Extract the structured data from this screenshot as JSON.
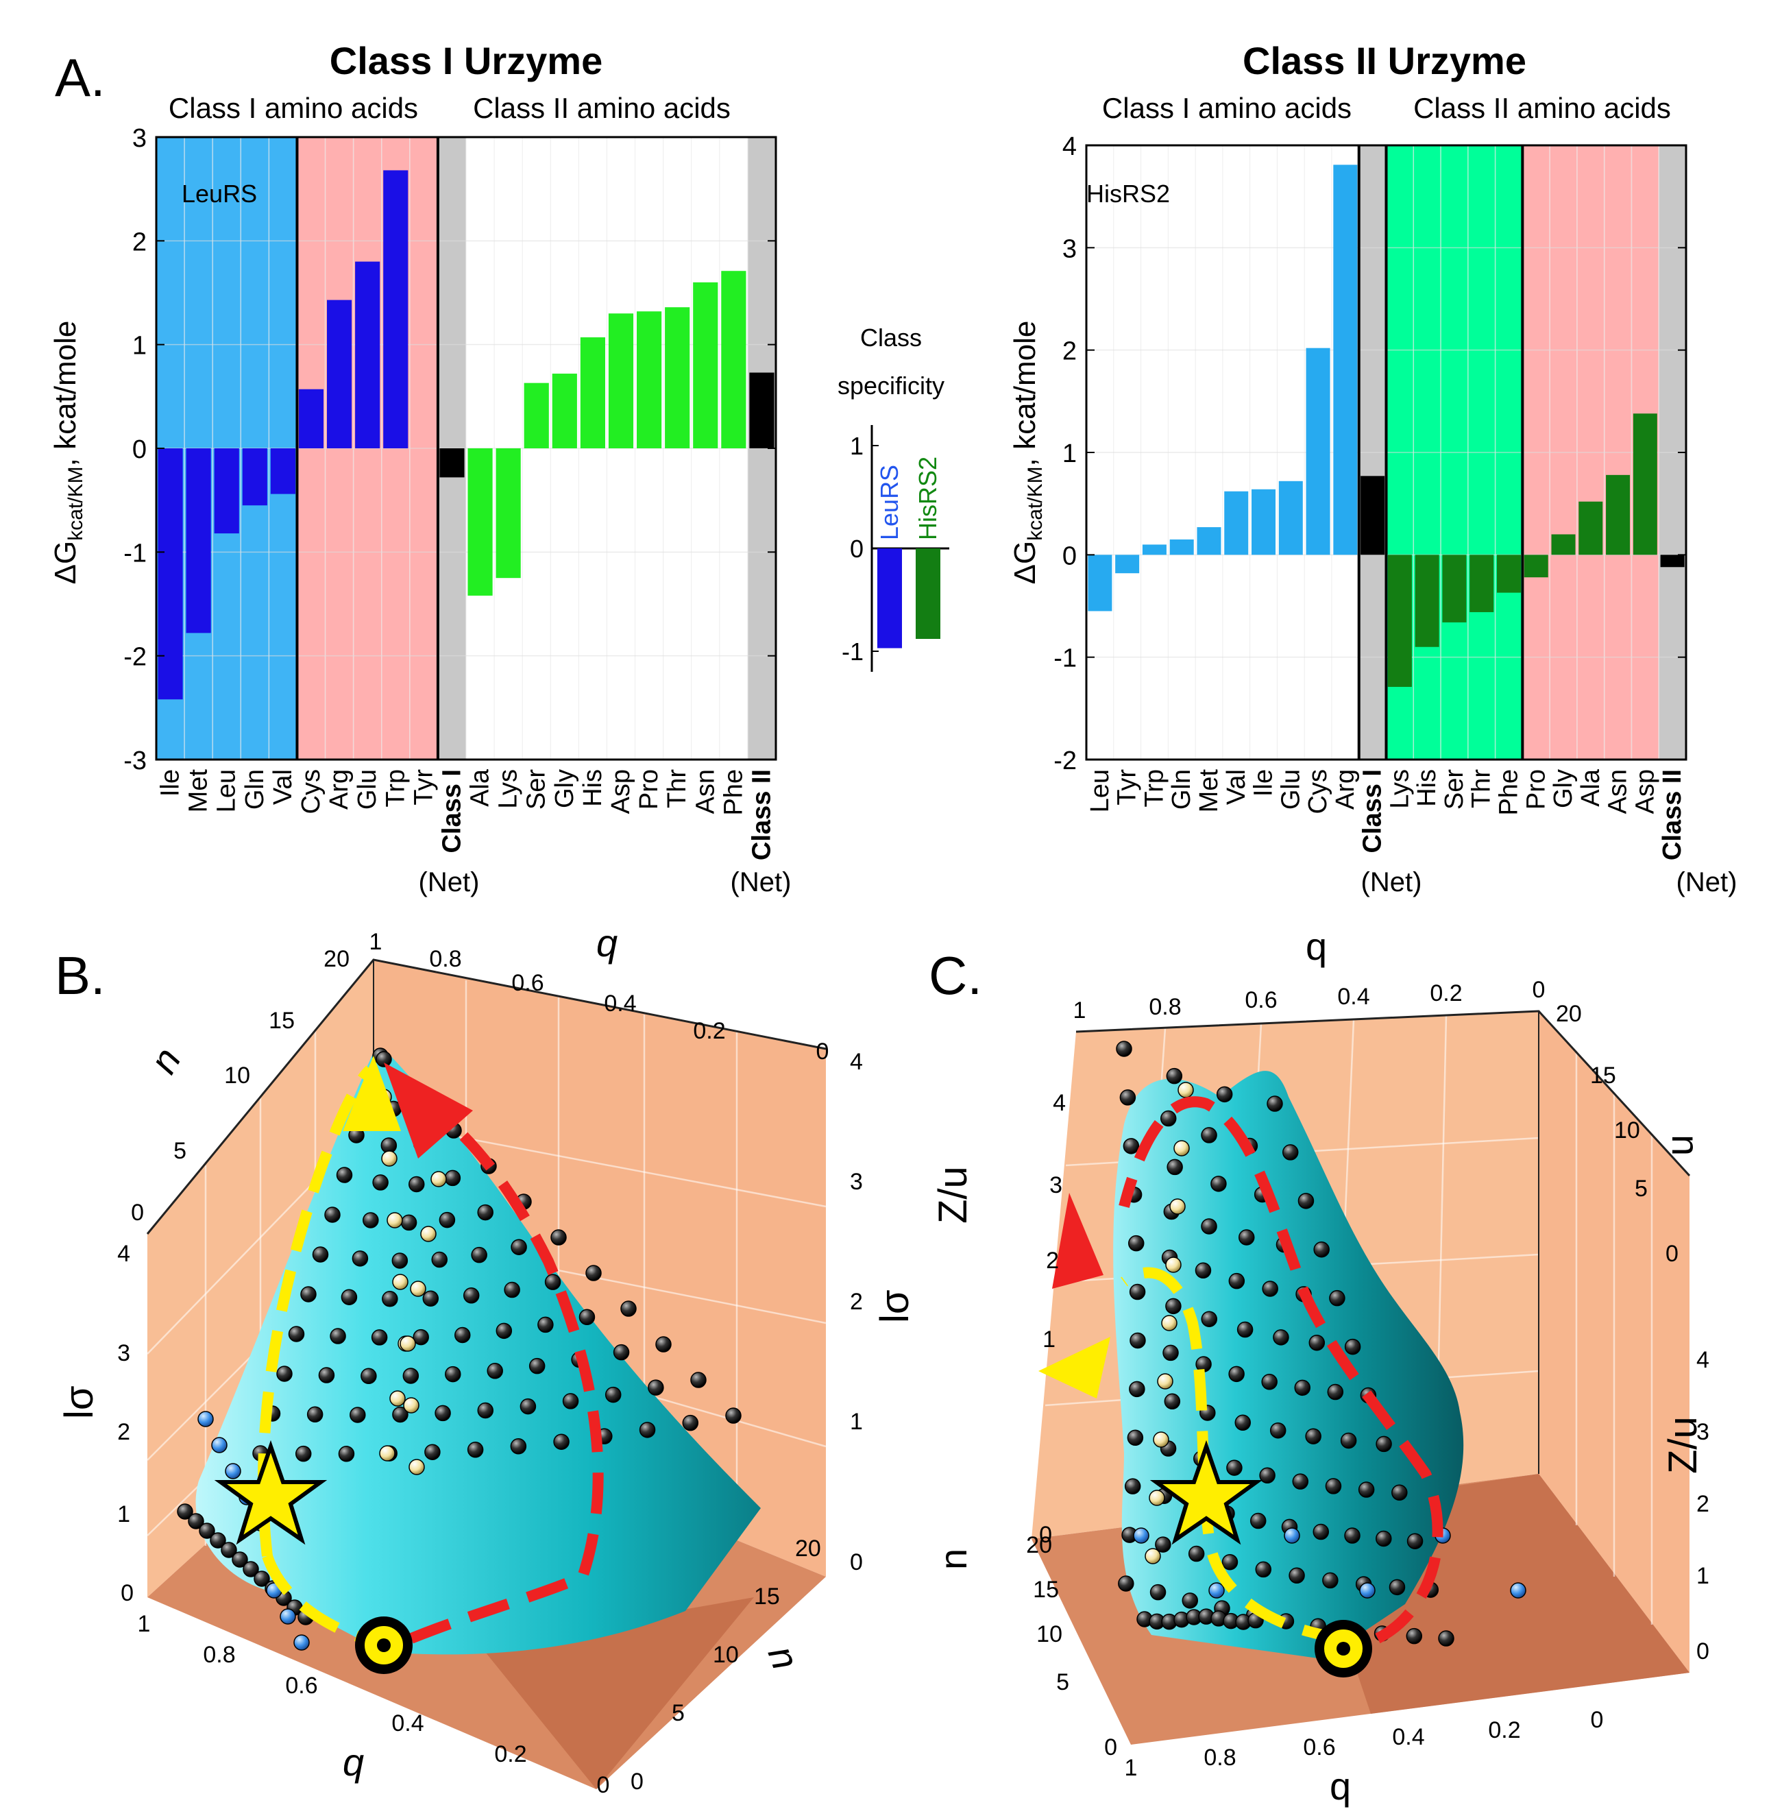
{
  "panel_labels": {
    "a": "A.",
    "b": "B.",
    "c": "C."
  },
  "ylabel_main": "ΔG",
  "ylabel_sub": "kcat/KM",
  "ylabel_unit": ", kcat/mole",
  "colors": {
    "class1_bg": "#3fb4f5",
    "class2_bg_pink": "#ffb0b0",
    "class2_bg_green": "#00ff99",
    "gray": "#c8c8c8",
    "dark_blue": "#1a0fe6",
    "bright_green": "#22ee22",
    "light_blue": "#27aaf0",
    "dark_green": "#137e13",
    "net": "#000000",
    "surface": "#18c7cc",
    "box_face": "#f8be95",
    "box_floor": "#cc7a55"
  },
  "chart_data": [
    {
      "id": "class1-urzyme",
      "type": "bar",
      "title": "Class I Urzyme",
      "group_labels": [
        "Class I amino acids",
        "Class II amino acids"
      ],
      "inset_label": "LeuRS",
      "ylim": [
        -3,
        3
      ],
      "yticks": [
        "-3",
        "-2",
        "-1",
        "0",
        "1",
        "2",
        "3"
      ],
      "categories": [
        "Ile",
        "Met",
        "Leu",
        "Gln",
        "Val",
        "Cys",
        "Arg",
        "Glu",
        "Trp",
        "Tyr",
        "Class I",
        "Ala",
        "Lys",
        "Ser",
        "Gly",
        "His",
        "Asp",
        "Pro",
        "Thr",
        "Asn",
        "Phe",
        "Class II"
      ],
      "values": [
        -2.42,
        -1.78,
        -0.82,
        -0.55,
        -0.44,
        0.57,
        1.43,
        1.8,
        2.68,
        0,
        -0.28,
        -1.42,
        -1.25,
        0.63,
        0.72,
        1.07,
        1.3,
        1.32,
        1.36,
        1.6,
        1.71,
        0.73
      ],
      "net_label": "(Net)"
    },
    {
      "id": "class-specificity",
      "type": "bar",
      "title": "Class specificity",
      "title_lines": [
        "Class",
        "specificity"
      ],
      "ylim": [
        -1.2,
        1.2
      ],
      "yticks": [
        "-1",
        "0",
        "1"
      ],
      "categories": [
        "LeuRS",
        "HisRS2"
      ],
      "values": [
        -0.97,
        -0.88
      ]
    },
    {
      "id": "class2-urzyme",
      "type": "bar",
      "title": "Class II Urzyme",
      "group_labels": [
        "Class I amino acids",
        "Class II amino acids"
      ],
      "inset_label": "HisRS2",
      "ylim": [
        -2,
        4
      ],
      "yticks": [
        "-2",
        "-1",
        "0",
        "1",
        "2",
        "3",
        "4"
      ],
      "categories": [
        "Leu",
        "Tyr",
        "Trp",
        "Gln",
        "Met",
        "Val",
        "Ile",
        "Glu",
        "Cys",
        "Arg",
        "Class I",
        "Lys",
        "His",
        "Ser",
        "Thr",
        "Phe",
        "Pro",
        "Gly",
        "Ala",
        "Asn",
        "Asp",
        "Class II"
      ],
      "values": [
        -0.55,
        -0.18,
        0.1,
        0.15,
        0.27,
        0.62,
        0.64,
        0.72,
        2.02,
        3.81,
        0.77,
        -1.29,
        -0.9,
        -0.66,
        -0.56,
        -0.37,
        -0.22,
        0.2,
        0.52,
        0.78,
        1.38,
        -0.12
      ],
      "net_label": "(Net)"
    },
    {
      "id": "surface-B",
      "type": "surface3d",
      "axes": {
        "q": "q",
        "n": "n",
        "z": "lσ"
      },
      "q_ticks": [
        "1",
        "0.8",
        "0.6",
        "0.4",
        "0.2",
        "0"
      ],
      "n_ticks": [
        "0",
        "5",
        "10",
        "15",
        "20"
      ],
      "z_ticks": [
        "0",
        "1",
        "2",
        "3",
        "4"
      ]
    },
    {
      "id": "surface-C",
      "type": "surface3d",
      "axes": {
        "q": "q",
        "n": "n",
        "z": "Z/u"
      },
      "q_ticks": [
        "1",
        "0.8",
        "0.6",
        "0.4",
        "0.2",
        "0"
      ],
      "n_ticks": [
        "0",
        "5",
        "10",
        "15",
        "20"
      ],
      "z_ticks": [
        "0",
        "1",
        "2",
        "3",
        "4"
      ]
    }
  ]
}
